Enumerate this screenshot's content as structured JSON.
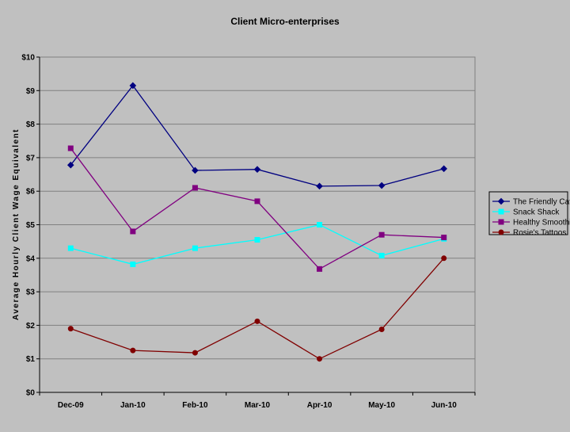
{
  "chart_data": {
    "type": "line",
    "title": "Client Micro-enterprises",
    "xlabel": "",
    "ylabel": "Average Hourly Client Wage Equivalent",
    "categories": [
      "Dec-09",
      "Jan-10",
      "Feb-10",
      "Mar-10",
      "Apr-10",
      "May-10",
      "Jun-10"
    ],
    "ylim": [
      0,
      10
    ],
    "yticks": [
      0,
      1,
      2,
      3,
      4,
      5,
      6,
      7,
      8,
      9,
      10
    ],
    "ytick_labels": [
      "$0",
      "$1",
      "$2",
      "$3",
      "$4",
      "$5",
      "$6",
      "$7",
      "$8",
      "$9",
      "$10"
    ],
    "grid": true,
    "legend_position": "right",
    "series": [
      {
        "name": "The Friendly Café",
        "color": "#000080",
        "marker": "diamond",
        "values": [
          6.78,
          9.15,
          6.62,
          6.65,
          6.15,
          6.17,
          6.67
        ]
      },
      {
        "name": "Snack Shack",
        "color": "#00ffff",
        "marker": "square",
        "values": [
          4.3,
          3.82,
          4.3,
          4.55,
          5.0,
          4.08,
          4.58
        ]
      },
      {
        "name": "Healthy Smoothies",
        "color": "#800080",
        "marker": "square",
        "values": [
          7.28,
          4.8,
          6.1,
          5.7,
          3.68,
          4.7,
          4.62
        ]
      },
      {
        "name": "Rosie's Tattoos",
        "color": "#800000",
        "marker": "circle",
        "values": [
          1.9,
          1.25,
          1.18,
          2.12,
          1.0,
          1.88,
          4.0
        ]
      }
    ]
  }
}
